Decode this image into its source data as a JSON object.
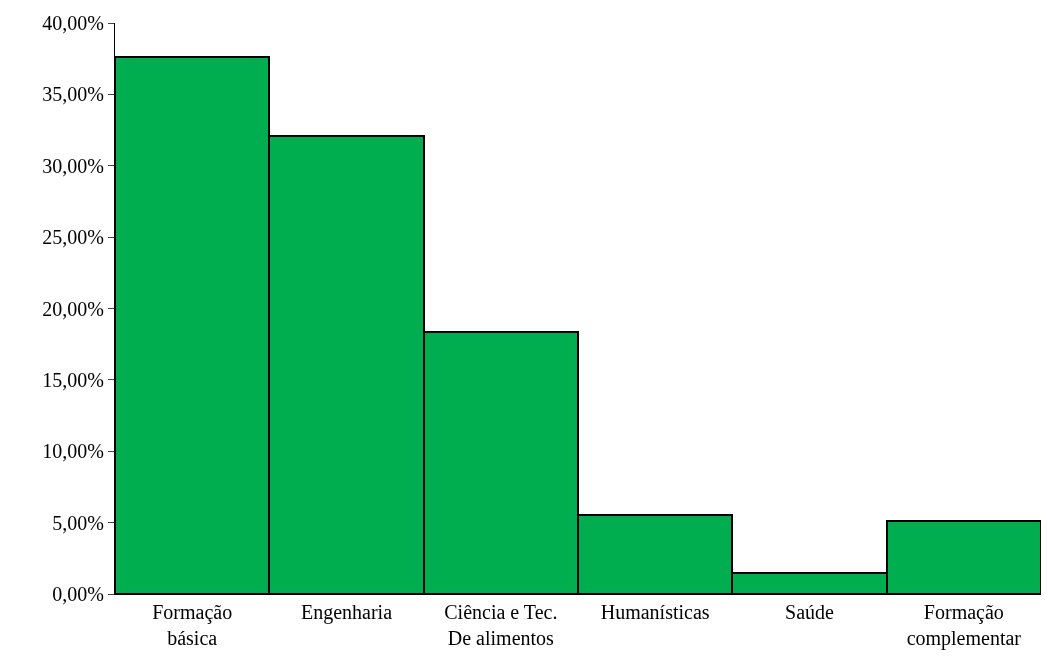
{
  "chart_data": {
    "type": "bar",
    "categories": [
      "Formação\nbásica",
      "Engenharia",
      "Ciência e Tec.\nDe alimentos",
      "Humanísticas",
      "Saúde",
      "Formação\ncomplementar"
    ],
    "values": [
      37.63,
      32.11,
      18.36,
      5.51,
      1.47,
      5.1
    ],
    "color": "#00ad4f",
    "ylim": [
      0,
      40
    ],
    "yticks": [
      {
        "value": 0,
        "label": "0,00%"
      },
      {
        "value": 5,
        "label": "5,00%"
      },
      {
        "value": 10,
        "label": "10,00%"
      },
      {
        "value": 15,
        "label": "15,00%"
      },
      {
        "value": 20,
        "label": "20,00%"
      },
      {
        "value": 25,
        "label": "25,00%"
      },
      {
        "value": 30,
        "label": "30,00%"
      },
      {
        "value": 35,
        "label": "35,00%"
      },
      {
        "value": 40,
        "label": "40,00%"
      }
    ],
    "tick_labels": "xy"
  }
}
